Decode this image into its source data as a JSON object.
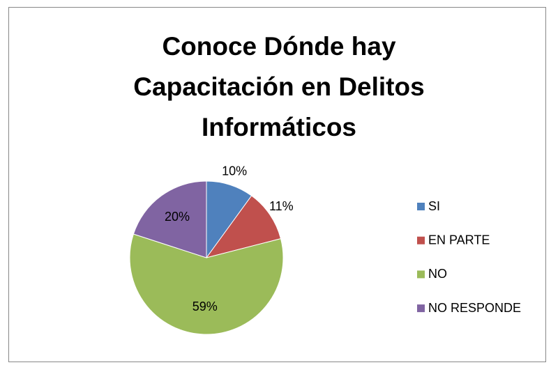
{
  "chart_data": {
    "type": "pie",
    "title": "Conoce Dónde hay Capacitación en Delitos Informáticos",
    "categories": [
      "SI",
      "EN PARTE",
      "NO",
      "NO RESPONDE"
    ],
    "values": [
      10,
      11,
      59,
      20
    ],
    "value_labels": [
      "10%",
      "11%",
      "59%",
      "20%"
    ],
    "colors": [
      "#4f81bd",
      "#c0504d",
      "#9bbb59",
      "#8064a2"
    ],
    "legend": "right"
  }
}
